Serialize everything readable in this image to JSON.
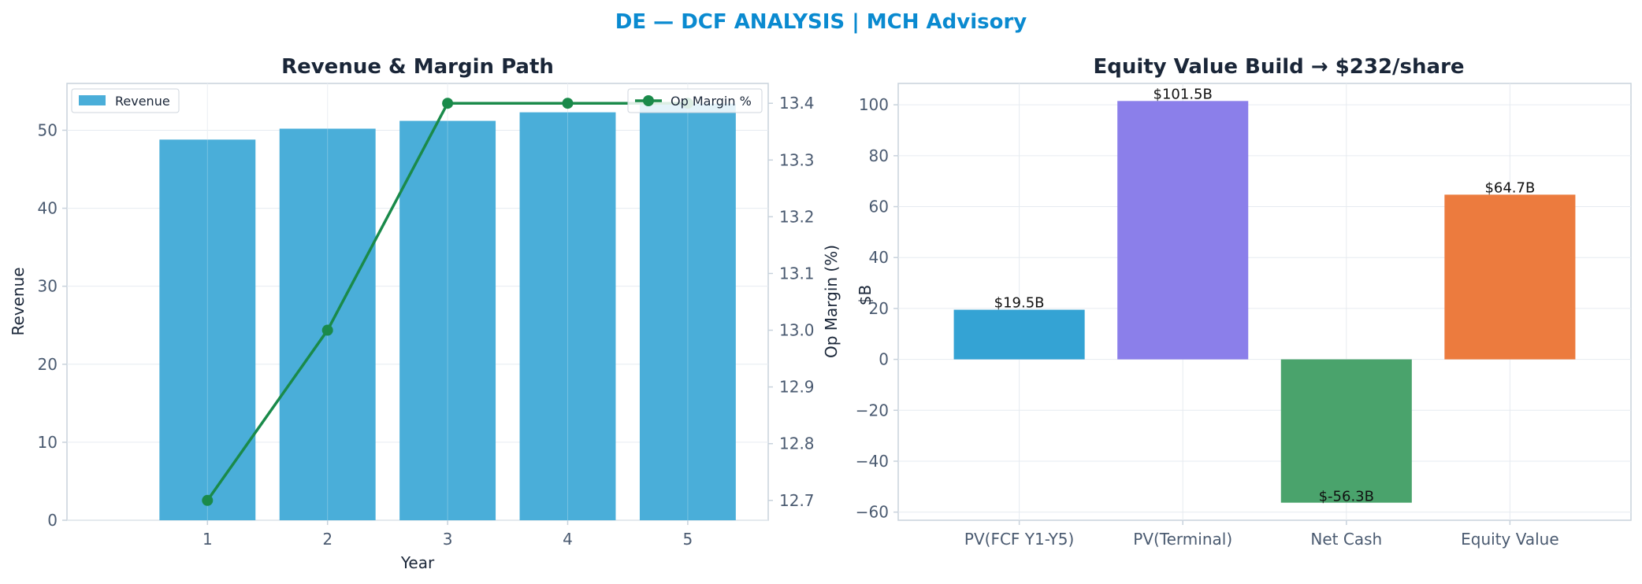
{
  "suptitle": "DE — DCF ANALYSIS | MCH Advisory",
  "colors": {
    "suptitle": "#0a8ad0",
    "revenue_bar": "#4aaed9",
    "margin_line": "#1a8a4a",
    "axes": "#c8d2dc",
    "grid": "#e6ebf0",
    "waterfall": [
      "#34a3d4",
      "#8b7fea",
      "#4aa36c",
      "#ec7b3e"
    ]
  },
  "chart_data": [
    {
      "type": "bar",
      "title": "Revenue & Margin Path",
      "xlabel": "Year",
      "ylabel": "Revenue",
      "categories": [
        "1",
        "2",
        "3",
        "4",
        "5"
      ],
      "ylim": [
        0,
        56
      ],
      "yticks": [
        0,
        10,
        20,
        30,
        40,
        50
      ],
      "series": [
        {
          "name": "Revenue",
          "values": [
            48.8,
            50.2,
            51.2,
            52.3,
            53.4
          ]
        }
      ],
      "secondary": {
        "type": "line",
        "name": "Op Margin %",
        "ylabel": "Op Margin (%)",
        "ylim": [
          12.665,
          13.435
        ],
        "yticks": [
          "12.7",
          "12.8",
          "12.9",
          "13.0",
          "13.1",
          "13.2",
          "13.3",
          "13.4"
        ],
        "values": [
          12.7,
          13.0,
          13.4,
          13.4,
          13.4
        ]
      },
      "legend": [
        "top-left",
        "top-right"
      ],
      "grid": true
    },
    {
      "type": "bar",
      "title": "Equity Value Build → $232/share",
      "xlabel": "",
      "ylabel": "$B",
      "categories": [
        "PV(FCF Y1-Y5)",
        "PV(Terminal)",
        "Net Cash",
        "Equity Value"
      ],
      "values": [
        19.5,
        101.5,
        -56.3,
        64.7
      ],
      "data_labels": [
        "$19.5B",
        "$101.5B",
        "$-56.3B",
        "$64.7B"
      ],
      "ylim": [
        -63.2,
        108.4
      ],
      "yticks": [
        "−60",
        "−40",
        "−20",
        "0",
        "20",
        "40",
        "60",
        "80",
        "100"
      ],
      "grid": true
    }
  ]
}
